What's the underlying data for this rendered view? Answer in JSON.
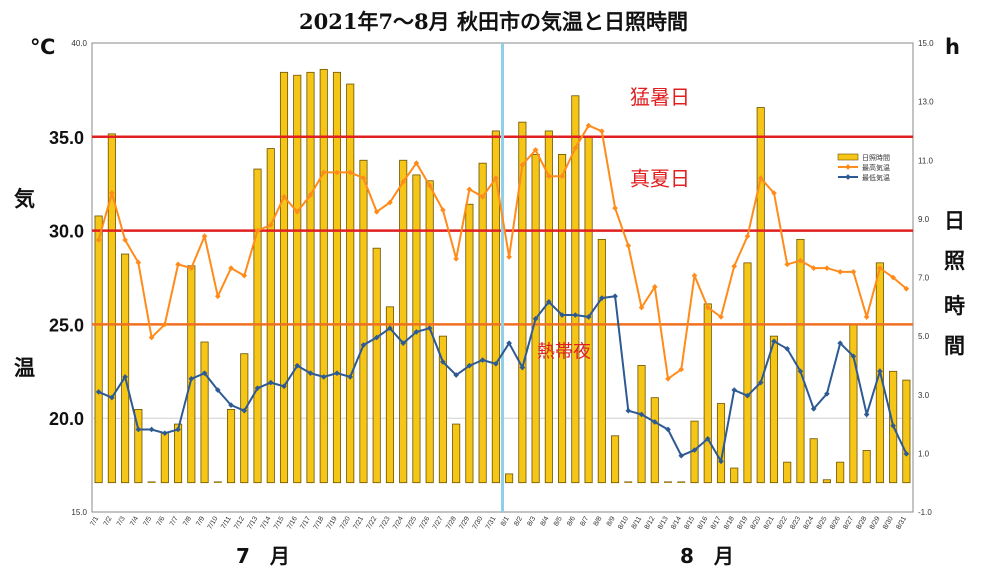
{
  "chart_data": {
    "type": "bar+line",
    "title": "2021年7～8月 秋田市の気温と日照時間",
    "y_left_unit": "℃",
    "y_left_label_top": "気",
    "y_left_label_bottom": "温",
    "y_left_ticks_major": [
      "35.0",
      "30.0",
      "25.0",
      "20.0"
    ],
    "y_left_ticks_minor": [
      "40.0",
      "15.0"
    ],
    "ylim_left": [
      15,
      40
    ],
    "y_right_unit": "h",
    "y_right_label": [
      "日",
      "照",
      "時",
      "間"
    ],
    "y_right_ticks": [
      "15.0",
      "13.0",
      "11.0",
      "9.0",
      "7.0",
      "5.0",
      "3.0",
      "1.0",
      "-1.0"
    ],
    "ylim_right": [
      -1,
      15
    ],
    "month_labels": [
      "7　月",
      "8　月"
    ],
    "categories": [
      "7/1",
      "7/2",
      "7/3",
      "7/4",
      "7/5",
      "7/6",
      "7/7",
      "7/8",
      "7/9",
      "7/10",
      "7/11",
      "7/12",
      "7/13",
      "7/14",
      "7/15",
      "7/16",
      "7/17",
      "7/18",
      "7/19",
      "7/20",
      "7/21",
      "7/22",
      "7/23",
      "7/24",
      "7/25",
      "7/26",
      "7/27",
      "7/28",
      "7/29",
      "7/30",
      "7/31",
      "8/1",
      "8/2",
      "8/3",
      "8/4",
      "8/5",
      "8/6",
      "8/7",
      "8/8",
      "8/9",
      "8/10",
      "8/11",
      "8/12",
      "8/13",
      "8/14",
      "8/15",
      "8/16",
      "8/17",
      "8/18",
      "8/19",
      "8/20",
      "8/21",
      "8/22",
      "8/23",
      "8/24",
      "8/25",
      "8/26",
      "8/27",
      "8/28",
      "8/29",
      "8/30",
      "8/31"
    ],
    "legend": [
      "日照時間",
      "最高気温",
      "最低気温"
    ],
    "series": [
      {
        "name": "日照時間",
        "axis": "right",
        "kind": "bar",
        "color": "#f5c518",
        "values": [
          9.1,
          11.9,
          7.8,
          2.5,
          0.0,
          1.7,
          2.0,
          7.4,
          4.8,
          0.0,
          2.5,
          4.4,
          10.7,
          11.4,
          14.0,
          13.9,
          14.0,
          14.1,
          14.0,
          13.6,
          11.0,
          8.0,
          6.0,
          11.0,
          10.5,
          10.3,
          5.0,
          2.0,
          9.5,
          10.9,
          12.0,
          0.3,
          12.3,
          11.2,
          12.0,
          11.2,
          13.2,
          11.8,
          8.3,
          1.6,
          0.0,
          4.0,
          2.9,
          0.0,
          0.0,
          2.1,
          6.1,
          2.7,
          0.5,
          7.5,
          12.8,
          5.0,
          0.7,
          8.3,
          1.5,
          0.1,
          0.7,
          5.4,
          1.1,
          7.5,
          3.8,
          3.5
        ]
      },
      {
        "name": "最高気温",
        "axis": "left",
        "kind": "line",
        "color": "#ff8c1a",
        "values": [
          29.5,
          32.0,
          29.5,
          28.3,
          24.3,
          25.0,
          28.2,
          28.0,
          29.7,
          26.5,
          28.0,
          27.6,
          30.0,
          30.3,
          31.8,
          31.0,
          31.9,
          33.1,
          33.1,
          33.1,
          32.8,
          31.0,
          31.5,
          32.6,
          33.6,
          32.4,
          31.1,
          28.5,
          32.2,
          31.8,
          32.8,
          28.6,
          33.5,
          34.3,
          32.9,
          32.9,
          34.4,
          35.6,
          35.3,
          31.2,
          29.2,
          25.9,
          27.0,
          22.1,
          22.6,
          27.6,
          25.9,
          25.4,
          28.1,
          29.7,
          32.8,
          32.0,
          28.2,
          28.4,
          28.0,
          28.0,
          27.8,
          27.8,
          25.4,
          28.0,
          27.5,
          26.9
        ]
      },
      {
        "name": "最低気温",
        "axis": "left",
        "kind": "line",
        "color": "#2e5a93",
        "values": [
          21.4,
          21.1,
          22.2,
          19.4,
          19.4,
          19.2,
          19.4,
          22.1,
          22.4,
          21.5,
          20.7,
          20.4,
          21.6,
          21.9,
          21.7,
          22.8,
          22.4,
          22.2,
          22.4,
          22.2,
          23.9,
          24.3,
          24.8,
          24.0,
          24.6,
          24.8,
          23.0,
          22.3,
          22.8,
          23.1,
          22.9,
          24.0,
          22.7,
          25.3,
          26.2,
          25.5,
          25.5,
          25.4,
          26.4,
          26.5,
          20.4,
          20.2,
          19.8,
          19.4,
          18.0,
          18.3,
          18.9,
          17.7,
          21.5,
          21.2,
          21.9,
          24.1,
          23.7,
          22.5,
          20.5,
          21.3,
          24.0,
          23.3,
          20.2,
          22.5,
          19.6,
          18.1
        ]
      }
    ],
    "reference_lines": [
      {
        "value": 35.0,
        "label": "猛暑日",
        "color": "#e02020"
      },
      {
        "value": 30.0,
        "label": "真夏日",
        "color": "#e02020"
      },
      {
        "value": 25.0,
        "label": "熱帯夜",
        "color": "#f07020"
      }
    ],
    "divider_after": "7/31",
    "grid": true
  }
}
